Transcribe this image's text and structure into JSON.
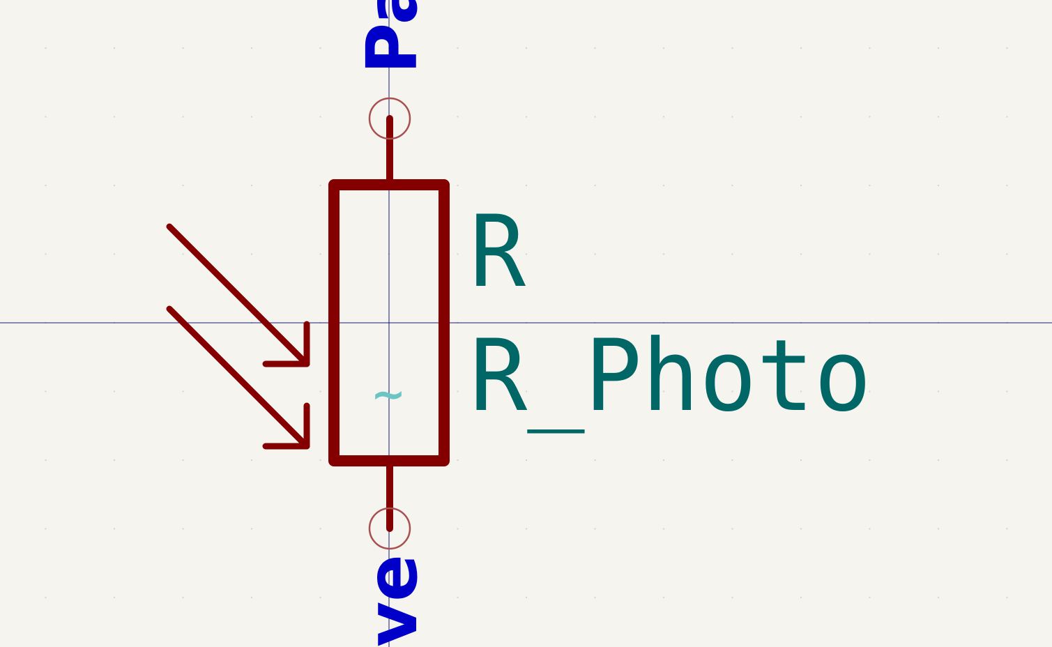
{
  "symbol": {
    "reference": "R",
    "value": "R_Photo",
    "pin_top_name": "Pa",
    "pin_bottom_name": "ve",
    "center_marker": "~"
  },
  "colors": {
    "background": "#f5f4ef",
    "body": "#840000",
    "pin_end_circle": "#a85050",
    "field_text": "#006666",
    "pin_text": "#0000c8",
    "crosshair": "#1a1a7a",
    "grid_dot": "#d8d6cc",
    "marker": "#6cc4c4"
  }
}
